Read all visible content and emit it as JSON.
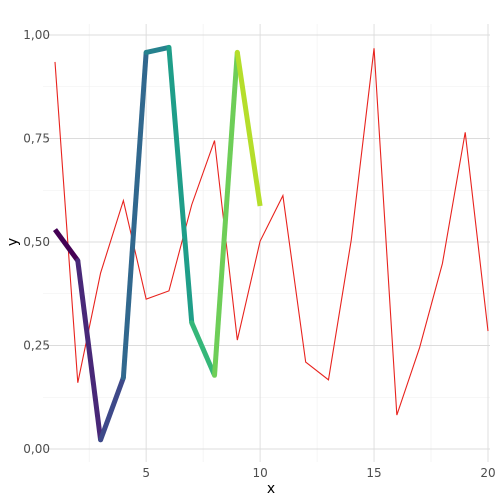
{
  "chart_data": {
    "type": "line",
    "xlabel": "x",
    "ylabel": "y",
    "xlim": [
      1,
      20
    ],
    "ylim": [
      0,
      1
    ],
    "x_ticks": [
      5,
      10,
      15,
      20
    ],
    "x_tick_labels": [
      "5",
      "10",
      "15",
      "20"
    ],
    "y_ticks": [
      0,
      0.25,
      0.5,
      0.75,
      1.0
    ],
    "y_tick_labels": [
      "0,00",
      "0,25",
      "0,50",
      "0,75",
      "1,00"
    ],
    "grid": true,
    "legend": "none",
    "series": [
      {
        "style": "thin",
        "color": "#e8231e",
        "x": [
          1,
          2,
          3,
          4,
          5,
          6,
          7,
          8,
          9,
          10,
          11,
          12,
          13,
          14,
          15,
          16,
          17,
          18,
          19,
          20
        ],
        "y": [
          0.935,
          0.16,
          0.425,
          0.6,
          0.362,
          0.382,
          0.59,
          0.745,
          0.263,
          0.502,
          0.612,
          0.21,
          0.167,
          0.505,
          0.968,
          0.082,
          0.245,
          0.448,
          0.765,
          0.285
        ]
      },
      {
        "style": "thick gradient",
        "colors": [
          "#440154",
          "#482878",
          "#3e4989",
          "#31688e",
          "#26828e",
          "#1f9e89",
          "#35b779",
          "#6ece58",
          "#b5de2b",
          "#fde725"
        ],
        "x": [
          1,
          2,
          3,
          4,
          5,
          6,
          7,
          8,
          9,
          10
        ],
        "y": [
          0.53,
          0.455,
          0.022,
          0.172,
          0.958,
          0.97,
          0.305,
          0.178,
          0.958,
          0.587
        ]
      }
    ]
  }
}
